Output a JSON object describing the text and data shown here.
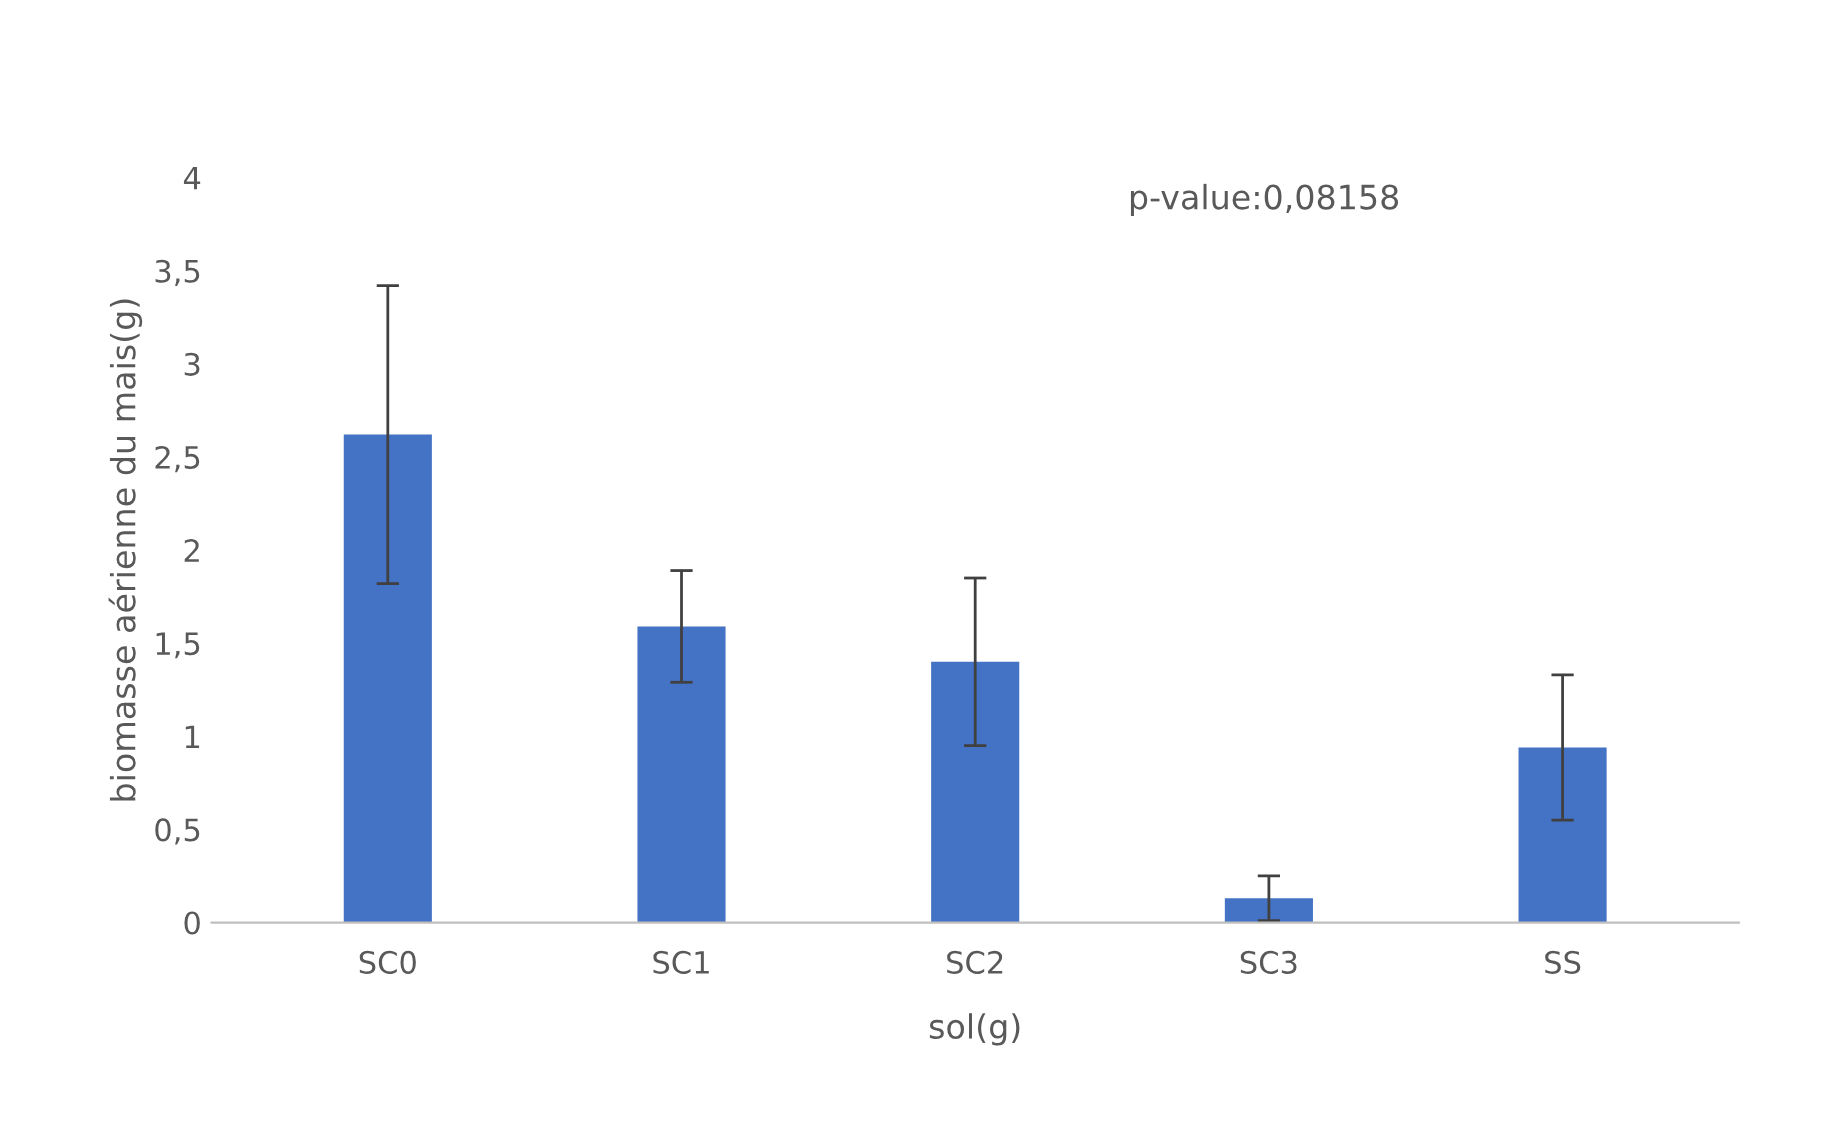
{
  "chart_data": {
    "type": "bar",
    "xlabel": "sol(g)",
    "ylabel": "biomasse aérienne du mais(g)",
    "categories": [
      "SC0",
      "SC1",
      "SC2",
      "SC3",
      "SS"
    ],
    "values": [
      2.62,
      1.59,
      1.4,
      0.13,
      0.94
    ],
    "errors": [
      0.8,
      0.3,
      0.45,
      0.12,
      0.39
    ],
    "color": "#4472c4",
    "ylim": [
      0,
      4
    ],
    "yticks": [
      0,
      {
        "value": 0.5,
        "label": "0,5"
      },
      1,
      {
        "value": 1.5,
        "label": "1,5"
      },
      2,
      {
        "value": 2.5,
        "label": "2,5"
      },
      3,
      {
        "value": 3.5,
        "label": "3,5"
      },
      4
    ],
    "grid": false,
    "legend": false,
    "annotations": [
      "p-value:0,08158"
    ]
  }
}
